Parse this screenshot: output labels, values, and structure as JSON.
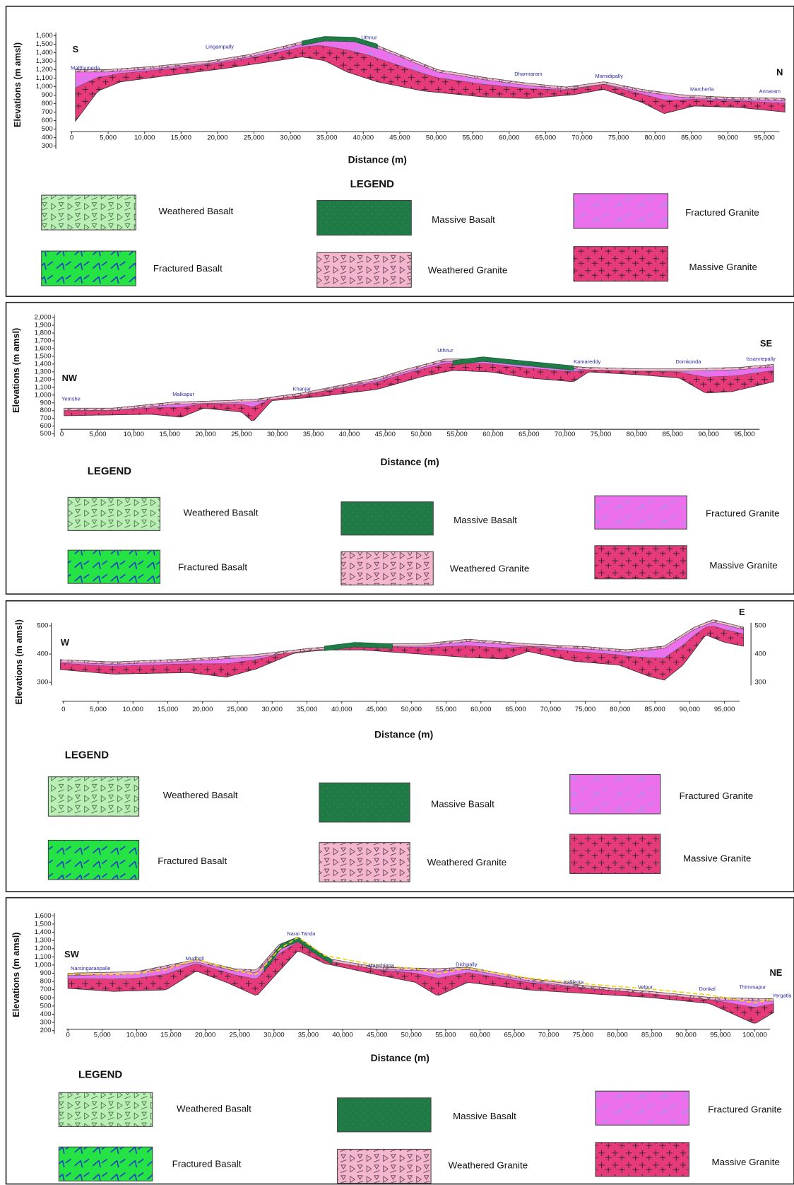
{
  "panels": [
    {
      "y_label": "Elevations (m amsl)",
      "x_label": "Distance (m)",
      "legend_title": "LEGEND",
      "directions": [
        "S",
        "N"
      ],
      "places": [
        "Malthumeda",
        "Lingampally",
        "Uthnur",
        "Dharmaram",
        "Mamidipally",
        "Marcherla",
        "Annaram"
      ],
      "y_ticks": [
        "1,600",
        "1,500",
        "1,400",
        "1,300",
        "1,200",
        "1,100",
        "1,000",
        "900",
        "800",
        "700",
        "600",
        "500",
        "400",
        "300"
      ],
      "x_ticks": [
        "0",
        "5,000",
        "10,000",
        "15,000",
        "20,000",
        "25,000",
        "30,000",
        "35,000",
        "40,000",
        "45,000",
        "50,000",
        "55,000",
        "60,000",
        "65,000",
        "70,000",
        "75,000",
        "80,000",
        "85,000",
        "90,000",
        "95,000"
      ],
      "legend": [
        "Weathered Basalt",
        "Massive Basalt",
        "Fractured Granite",
        "Fractured Basalt",
        "Weathered Granite",
        "Massive Granite"
      ]
    },
    {
      "y_label": "Elevations (m amsl)",
      "x_label": "Distance (m)",
      "legend_title": "LEGEND",
      "directions": [
        "NW",
        "SE"
      ],
      "places": [
        "Yemshe",
        "Malkapur",
        "Khanjar",
        "Uthnur",
        "Kamareddy",
        "Domkonda",
        "Issannepally"
      ],
      "y_ticks": [
        "2,000",
        "1,900",
        "1,800",
        "1,700",
        "1,600",
        "1,500",
        "1,400",
        "1,300",
        "1,200",
        "1,100",
        "1,000",
        "900",
        "800",
        "700",
        "600",
        "500"
      ],
      "x_ticks": [
        "0",
        "5,000",
        "10,000",
        "15,000",
        "20,000",
        "25,000",
        "30,000",
        "35,000",
        "40,000",
        "45,000",
        "50,000",
        "55,000",
        "60,000",
        "65,000",
        "70,000",
        "75,000",
        "80,000",
        "85,000",
        "90,000",
        "95,000"
      ],
      "legend": [
        "Weathered Basalt",
        "Massive Basalt",
        "Fractured Granite",
        "Fractured Basalt",
        "Weathered Granite",
        "Massive Granite"
      ]
    },
    {
      "y_label": "Elevations (m amsl)",
      "x_label": "Distance (m)",
      "legend_title": "LEGEND",
      "directions": [
        "W",
        "E"
      ],
      "places": [],
      "y_ticks": [
        "500",
        "400",
        "300"
      ],
      "y2_ticks": [
        "500",
        "400",
        "300"
      ],
      "x_ticks": [
        "0",
        "5,000",
        "10,000",
        "15,000",
        "20,000",
        "25,000",
        "30,000",
        "35,000",
        "40,000",
        "45,000",
        "50,000",
        "55,000",
        "60,000",
        "65,000",
        "70,000",
        "75,000",
        "80,000",
        "85,000",
        "90,000",
        "95,000"
      ],
      "legend": [
        "Weathered Basalt",
        "Massive Basalt",
        "Fractured Granite",
        "Fractured Basalt",
        "Weathered Granite",
        "Massive Granite"
      ]
    },
    {
      "y_label": "Elevations (m amsl)",
      "x_label": "Distance (m)",
      "legend_title": "LEGEND",
      "directions": [
        "SW",
        "NE"
      ],
      "places": [
        "Narsingaraopalle",
        "Mudholi",
        "Narai Tanda",
        "Manchippa",
        "Dichpally",
        "Kallikota",
        "Velpur",
        "Donkal",
        "Thimmapur",
        "Yergatla"
      ],
      "y_ticks": [
        "1,600",
        "1,500",
        "1,400",
        "1,300",
        "1,200",
        "1,100",
        "1,000",
        "900",
        "800",
        "700",
        "600",
        "500",
        "400",
        "300",
        "200"
      ],
      "x_ticks": [
        "0",
        "5,000",
        "10,000",
        "15,000",
        "20,000",
        "25,000",
        "30,000",
        "35,000",
        "40,000",
        "45,000",
        "50,000",
        "55,000",
        "60,000",
        "65,000",
        "70,000",
        "75,000",
        "80,000",
        "85,000",
        "90,000",
        "95,000",
        "100,000"
      ],
      "legend": [
        "Weathered Basalt",
        "Massive Basalt",
        "Fractured Granite",
        "Fractured Basalt",
        "Weathered Granite",
        "Massive Granite"
      ]
    }
  ]
}
